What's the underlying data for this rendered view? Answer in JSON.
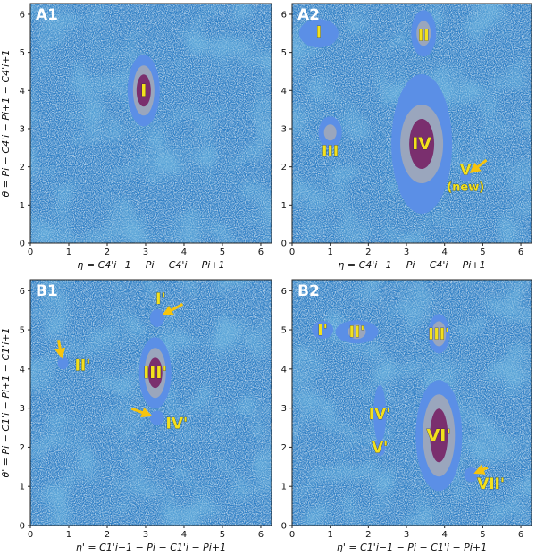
{
  "colors": {
    "background_density": "#2f7fc5",
    "speckle": "#ffffff",
    "level1": "#5b8fe6",
    "level2": "#9aa6bd",
    "level3": "#7a2f6e",
    "label": "#f3e11d",
    "arrow": "#f7c40d"
  },
  "chart_data": [
    {
      "type": "heatmap",
      "panel": "A1",
      "xlabel": "η = C4'i−1 − Pi − C4'i − Pi+1",
      "ylabel": "θ = Pi − C4'i − Pi+1 − C4'i+1",
      "xlim": [
        0,
        6.28
      ],
      "ylim": [
        0,
        6.28
      ],
      "xticks": [
        "0",
        "1",
        "2",
        "3",
        "4",
        "5",
        "6"
      ],
      "yticks": [
        "0",
        "1",
        "2",
        "3",
        "4",
        "5",
        "6"
      ],
      "clusters": [
        {
          "label": "I",
          "x": 2.95,
          "y": 4.0,
          "levels": 3
        }
      ],
      "arrows": []
    },
    {
      "type": "heatmap",
      "panel": "A2",
      "xlabel": "η = C4'i−1 − Pi − C4'i − Pi+1",
      "ylabel": "",
      "xlim": [
        0,
        6.28
      ],
      "ylim": [
        0,
        6.28
      ],
      "xticks": [
        "0",
        "1",
        "2",
        "3",
        "4",
        "5",
        "6"
      ],
      "yticks": [
        "0",
        "1",
        "2",
        "3",
        "4",
        "5",
        "6"
      ],
      "clusters": [
        {
          "label": "I",
          "x": 0.7,
          "y": 5.5,
          "levels": 1
        },
        {
          "label": "II",
          "x": 3.45,
          "y": 5.5,
          "levels": 2
        },
        {
          "label": "III",
          "x": 1.0,
          "y": 2.9,
          "levels": 2
        },
        {
          "label": "IV",
          "x": 3.4,
          "y": 2.6,
          "levels": 3
        },
        {
          "label": "V (new)",
          "x": 4.55,
          "y": 1.75,
          "levels": 1
        }
      ],
      "arrows": [
        {
          "target": "V (new)"
        }
      ]
    },
    {
      "type": "heatmap",
      "panel": "B1",
      "xlabel": "η' = C1'i−1 − Pi − C1'i − Pi+1",
      "ylabel": "θ' = Pi − C1'i − Pi+1 − C1'i+1",
      "xlim": [
        0,
        6.28
      ],
      "ylim": [
        0,
        6.28
      ],
      "xticks": [
        "0",
        "1",
        "2",
        "3",
        "4",
        "5",
        "6"
      ],
      "yticks": [
        "0",
        "1",
        "2",
        "3",
        "4",
        "5",
        "6"
      ],
      "clusters": [
        {
          "label": "I'",
          "x": 3.3,
          "y": 5.3,
          "levels": 1
        },
        {
          "label": "II'",
          "x": 0.85,
          "y": 4.15,
          "levels": 1
        },
        {
          "label": "III'",
          "x": 3.25,
          "y": 3.9,
          "levels": 3
        },
        {
          "label": "IV'",
          "x": 3.3,
          "y": 2.75,
          "levels": 1
        }
      ],
      "arrows": [
        {
          "target": "I'"
        },
        {
          "target": "II'"
        },
        {
          "target": "IV'"
        }
      ]
    },
    {
      "type": "heatmap",
      "panel": "B2",
      "xlabel": "η' = C1'i−1 − Pi − C1'i − Pi+1",
      "ylabel": "",
      "xlim": [
        0,
        6.28
      ],
      "ylim": [
        0,
        6.28
      ],
      "xticks": [
        "0",
        "1",
        "2",
        "3",
        "4",
        "5",
        "6"
      ],
      "yticks": [
        "0",
        "1",
        "2",
        "3",
        "4",
        "5",
        "6"
      ],
      "clusters": [
        {
          "label": "I'",
          "x": 0.8,
          "y": 5.0,
          "levels": 1
        },
        {
          "label": "II'",
          "x": 1.7,
          "y": 4.95,
          "levels": 2
        },
        {
          "label": "III'",
          "x": 3.85,
          "y": 4.9,
          "levels": 2
        },
        {
          "label": "IV'",
          "x": 2.3,
          "y": 2.85,
          "levels": 1
        },
        {
          "label": "V'",
          "x": 2.3,
          "y": 2.0,
          "levels": 1
        },
        {
          "label": "VI'",
          "x": 3.85,
          "y": 2.3,
          "levels": 3
        },
        {
          "label": "VII'",
          "x": 4.7,
          "y": 1.3,
          "levels": 1
        }
      ],
      "arrows": [
        {
          "target": "VII'"
        }
      ]
    }
  ]
}
